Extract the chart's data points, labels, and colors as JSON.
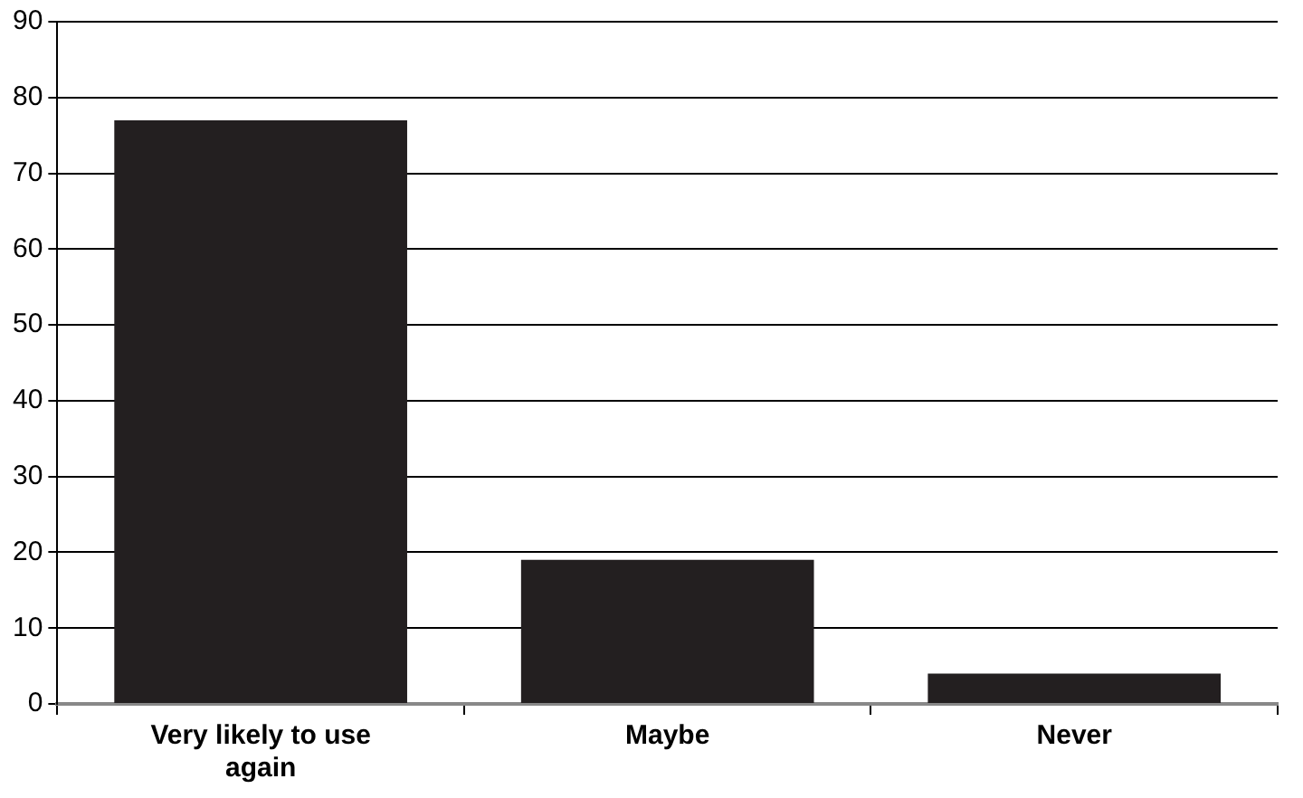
{
  "chart_data": {
    "type": "bar",
    "categories": [
      "Very likely to use again",
      "Maybe",
      "Never"
    ],
    "values": [
      77,
      19,
      4
    ],
    "color": "#231f20",
    "ylim": [
      0,
      90
    ],
    "yticks": [
      0,
      10,
      20,
      30,
      40,
      50,
      60,
      70,
      80,
      90
    ],
    "grid": "y",
    "legend": false
  }
}
